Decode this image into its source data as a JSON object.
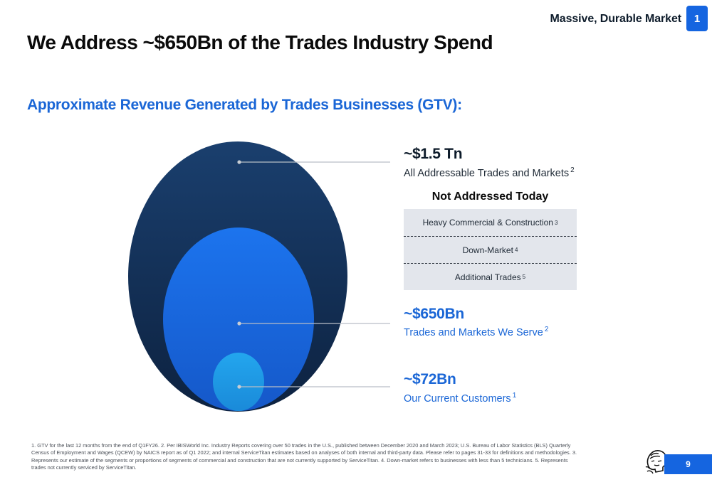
{
  "header": {
    "section_label": "Massive, Durable Market",
    "section_number": "1"
  },
  "title": "We Address ~$650Bn of the Trades Industry Spend",
  "subtitle": "Approximate Revenue Generated by Trades Businesses (GTV):",
  "markets": {
    "total": {
      "value": "~$1.5 Tn",
      "label": "All Addressable Trades and Markets",
      "footnote": "2"
    },
    "served": {
      "value": "~$650Bn",
      "label": "Trades and Markets We Serve",
      "footnote": "2"
    },
    "current": {
      "value": "~$72Bn",
      "label": "Our Current Customers",
      "footnote": "1"
    }
  },
  "not_addressed": {
    "title": "Not Addressed Today",
    "items": [
      {
        "label": "Heavy Commercial & Construction",
        "footnote": "3"
      },
      {
        "label": "Down-Market",
        "footnote": "4"
      },
      {
        "label": "Additional Trades",
        "footnote": "5"
      }
    ]
  },
  "footnotes": "1. GTV for the last 12 months from the end of Q1FY26. 2. Per IBISWorld Inc. Industry Reports covering over 50 trades in the U.S., published between December 2020 and March 2023; U.S. Bureau of Labor Statistics (BLS) Quarterly Census of Employment and Wages (QCEW) by NAICS report as of Q1 2022; and internal ServiceTitan estimates based on analyses of both internal and third-party data. Please refer to pages 31-33 for definitions and methodologies. 3. Represents our estimate of the segments or proportions of segments of commercial and construction that are not currently supported by ServiceTitan. 4. Down-market refers to businesses with less than 5 technicians. 5. Represents trades not currently serviced by ServiceTitan.",
  "page_number": "9",
  "colors": {
    "accent_blue": "#1565e0",
    "outer_circle": "#14325a",
    "middle_circle": "#1a6ee8",
    "inner_circle": "#1e9be6",
    "not_addressed_bg": "#e3e6ec"
  },
  "icons": {
    "logo": "titan-head-logo-icon"
  }
}
